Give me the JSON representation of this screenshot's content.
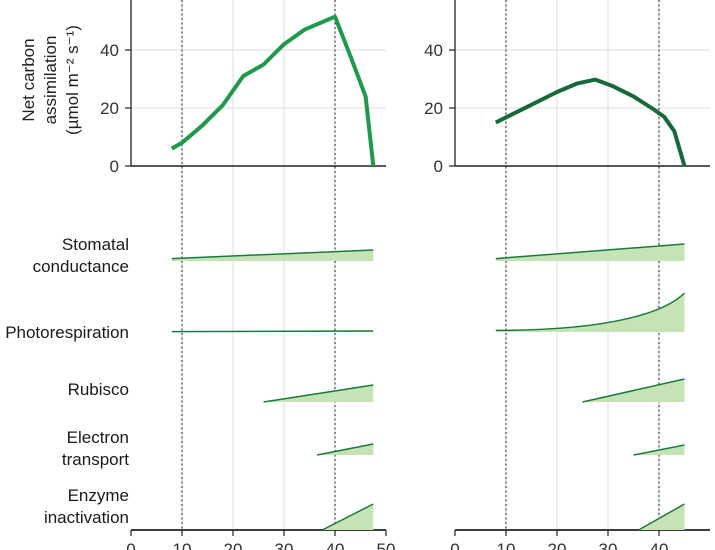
{
  "colors": {
    "left_line": "#1f9a4a",
    "right_line": "#17683a",
    "wedge_fill": "#c5e3b4",
    "wedge_edge": "#1a7a3c",
    "grid": "#dcdcdc",
    "axis": "#222222"
  },
  "chart_data": [
    {
      "type": "line",
      "panel": "left",
      "ylabel_lines": [
        "Net carbon",
        "assimilation",
        "(µmol m⁻² s⁻¹)"
      ],
      "x_ticks": [
        "0",
        "10",
        "20",
        "30",
        "40",
        "50"
      ],
      "y_ticks": [
        "0",
        "20",
        "40"
      ],
      "xlim": [
        0,
        50
      ],
      "ylim": [
        0,
        55
      ],
      "x": [
        8,
        10,
        14,
        18,
        22,
        26,
        30,
        34,
        38,
        40,
        43,
        46,
        47.5
      ],
      "y": [
        6,
        8,
        14,
        21,
        31,
        35,
        42,
        47,
        50,
        51.5,
        38,
        24,
        0
      ],
      "reference_lines_x": [
        10,
        40
      ]
    },
    {
      "type": "line",
      "panel": "right",
      "x_ticks": [
        "0",
        "10",
        "20",
        "30",
        "40"
      ],
      "y_ticks": [
        "0",
        "20",
        "40"
      ],
      "xlim": [
        0,
        50
      ],
      "ylim": [
        0,
        55
      ],
      "x": [
        8,
        12,
        16,
        20,
        24,
        27.5,
        31,
        35,
        39,
        41,
        43,
        45
      ],
      "y": [
        15,
        18.5,
        22,
        25.5,
        28.5,
        29.8,
        27.5,
        24,
        19.5,
        17,
        12,
        0
      ],
      "reference_lines_x": [
        10,
        40
      ]
    },
    {
      "type": "area",
      "panel": "rows",
      "rows": [
        {
          "label_lines": [
            "Stomatal",
            "conductance"
          ],
          "left": {
            "x_start": 8,
            "x_end": 47.5,
            "y_start": 0.12,
            "y_end": 0.55,
            "curve": "linear"
          },
          "right": {
            "x_start": 8,
            "x_end": 45,
            "y_start": 0.12,
            "y_end": 0.85,
            "curve": "linear"
          }
        },
        {
          "label_lines": [
            "Photorespiration"
          ],
          "left": {
            "x_start": 8,
            "x_end": 47.5,
            "y_start": 0.02,
            "y_end": 0.05,
            "curve": "linear"
          },
          "right": {
            "x_start": 8,
            "x_end": 45,
            "y_start": 0.08,
            "y_end": 1.95,
            "curve": "convex"
          }
        },
        {
          "label_lines": [
            "Rubisco"
          ],
          "left": {
            "x_start": 26,
            "x_end": 47.5,
            "y_start": 0,
            "y_end": 0.85,
            "curve": "linear"
          },
          "right": {
            "x_start": 25,
            "x_end": 45,
            "y_start": 0,
            "y_end": 1.15,
            "curve": "linear"
          }
        },
        {
          "label_lines": [
            "Electron",
            "transport"
          ],
          "left": {
            "x_start": 36.5,
            "x_end": 47.5,
            "y_start": 0,
            "y_end": 0.55,
            "curve": "linear"
          },
          "right": {
            "x_start": 35,
            "x_end": 45,
            "y_start": 0,
            "y_end": 0.5,
            "curve": "linear"
          }
        },
        {
          "label_lines": [
            "Enzyme",
            "inactivation"
          ],
          "left": {
            "x_start": 37.5,
            "x_end": 47.5,
            "y_start": 0,
            "y_end": 1.3,
            "curve": "linear"
          },
          "right": {
            "x_start": 36,
            "x_end": 45,
            "y_start": 0,
            "y_end": 1.3,
            "curve": "linear"
          }
        }
      ]
    }
  ]
}
